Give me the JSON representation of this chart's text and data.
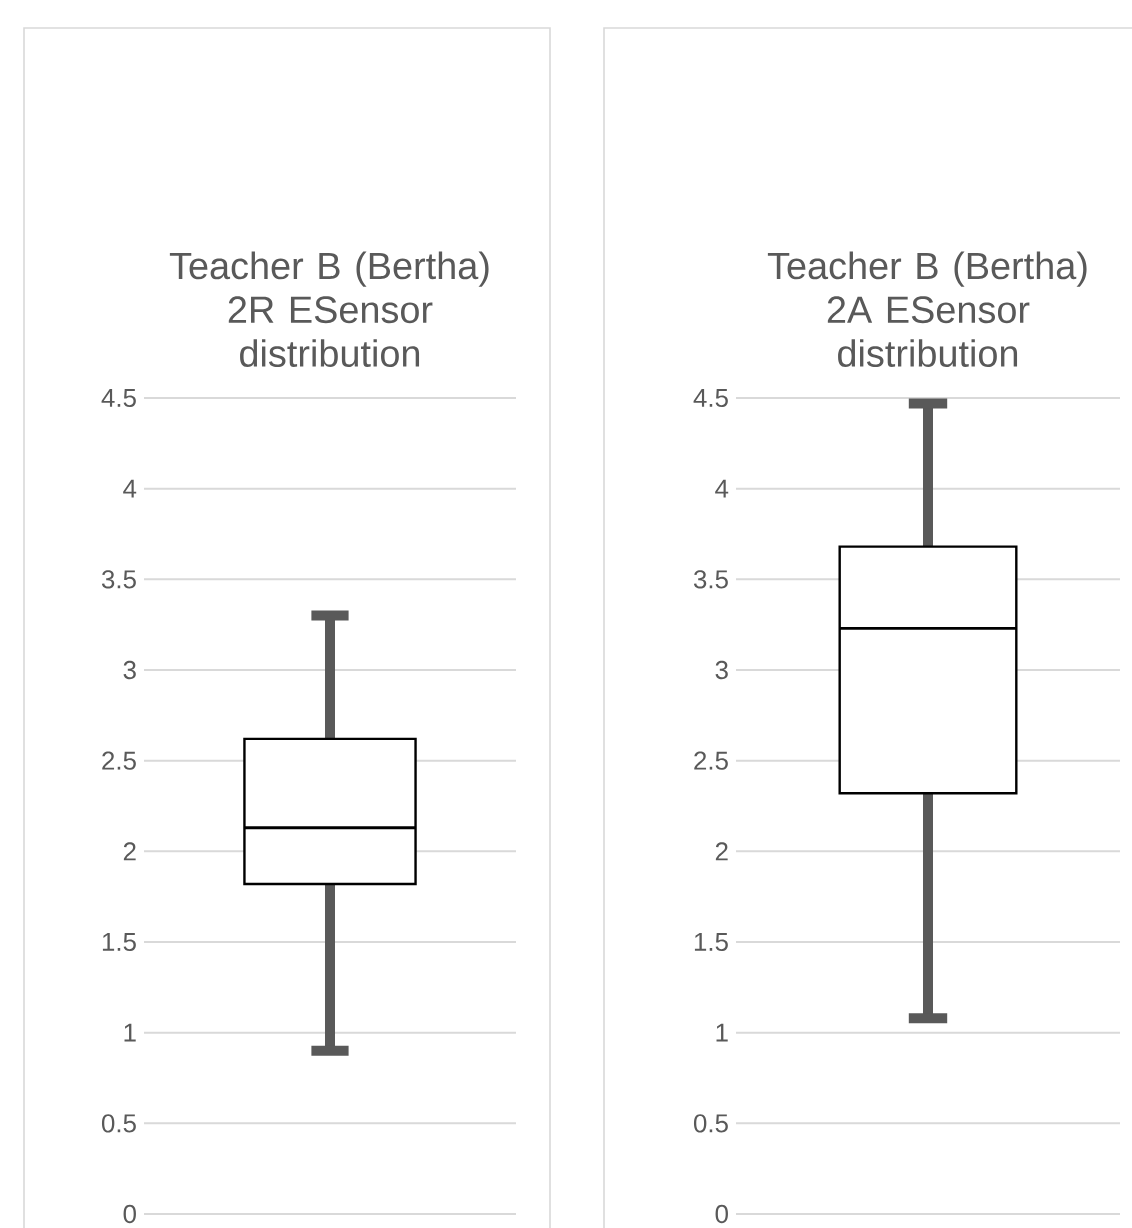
{
  "chart_data": [
    {
      "type": "box",
      "title": "Teacher B (Bertha) 2R ESensor distribution",
      "categories": [
        null
      ],
      "boxes": [
        {
          "low": 0.9,
          "q1": 1.82,
          "median": 2.13,
          "q3": 2.62,
          "high": 3.3
        }
      ],
      "ylim": [
        0,
        4.5
      ],
      "yticks": [
        0,
        0.5,
        1,
        1.5,
        2,
        2.5,
        3,
        3.5,
        4,
        4.5
      ],
      "grid": "y",
      "tick_labels": "y"
    },
    {
      "type": "box",
      "title": "Teacher B (Bertha) 2A ESensor distribution",
      "categories": [
        null
      ],
      "boxes": [
        {
          "low": 1.08,
          "q1": 2.32,
          "median": 3.23,
          "q3": 3.68,
          "high": 4.47
        }
      ],
      "ylim": [
        0,
        4.5
      ],
      "yticks": [
        0,
        0.5,
        1,
        1.5,
        2,
        2.5,
        3,
        3.5,
        4,
        4.5
      ],
      "grid": "y",
      "tick_labels": "y"
    }
  ]
}
